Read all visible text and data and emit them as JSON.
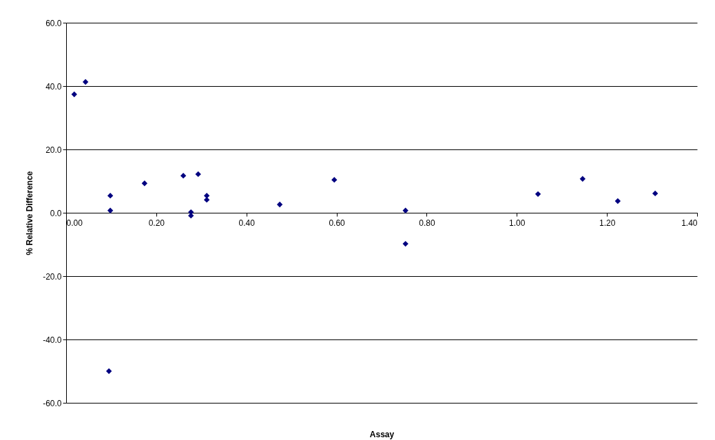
{
  "chart_data": {
    "type": "scatter",
    "xlabel": "Assay",
    "ylabel": "% Relative Difference",
    "x": [
      0.018,
      0.043,
      0.098,
      0.098,
      0.095,
      0.174,
      0.26,
      0.293,
      0.277,
      0.277,
      0.312,
      0.312,
      0.474,
      0.595,
      0.753,
      0.753,
      1.047,
      1.146,
      1.224,
      1.307
    ],
    "series": [
      {
        "color": "#000080",
        "values": [
          37.4,
          41.3,
          5.4,
          0.7,
          -50,
          9.3,
          11.7,
          12.2,
          0.2,
          -0.9,
          5.4,
          4.1,
          2.6,
          10.4,
          0.7,
          -9.8,
          5.9,
          10.7,
          3.7,
          6.1
        ]
      }
    ],
    "xlim": [
      0,
      1.4
    ],
    "ylim": [
      -60,
      60
    ],
    "xticks": [
      {
        "value": 0,
        "label": "0.00"
      },
      {
        "value": 0.2,
        "label": "0.20"
      },
      {
        "value": 0.4,
        "label": "0.40"
      },
      {
        "value": 0.6,
        "label": "0.60"
      },
      {
        "value": 0.8,
        "label": "0.80"
      },
      {
        "value": 1,
        "label": "1.00"
      },
      {
        "value": 1.2,
        "label": "1.20"
      },
      {
        "value": 1.4,
        "label": "1.40"
      }
    ],
    "yticks": [
      {
        "value": -60,
        "label": "-60.0"
      },
      {
        "value": -40,
        "label": "-40.0"
      },
      {
        "value": -20,
        "label": "-20.0"
      },
      {
        "value": 0,
        "label": "0.0"
      },
      {
        "value": 20,
        "label": "20.0"
      },
      {
        "value": 40,
        "label": "40.0"
      },
      {
        "value": 60,
        "label": "60.0"
      }
    ],
    "grid": "y",
    "marker": "diamond"
  }
}
